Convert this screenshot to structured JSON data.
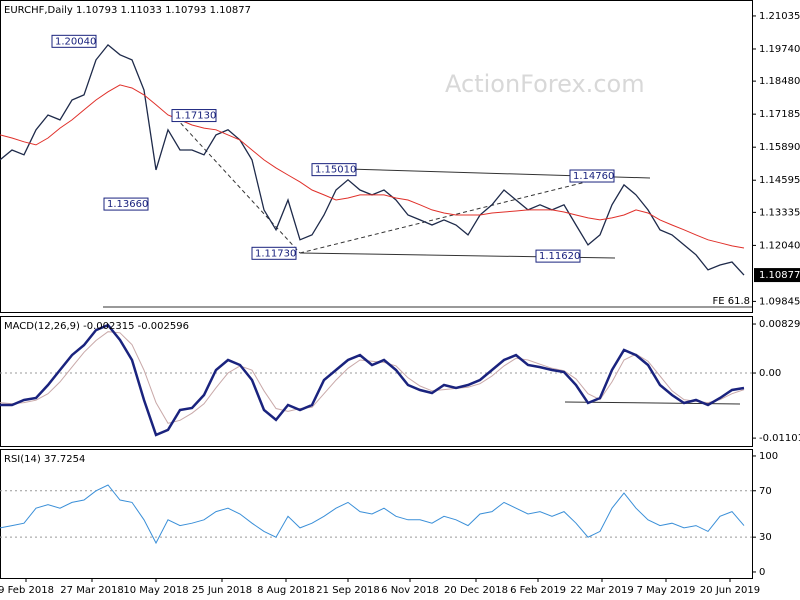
{
  "chart_data": [
    {
      "type": "line",
      "title": "EURCHF,Daily  1.10793 1.11033 1.10793 1.10877",
      "watermark": "ActionForex.com",
      "x": [
        0,
        6,
        12,
        18,
        24,
        30,
        36,
        42,
        48,
        54,
        60,
        66,
        72,
        78,
        84,
        90,
        96,
        102,
        108,
        114,
        120,
        126,
        132,
        138,
        144,
        150,
        156,
        162,
        168,
        174,
        180,
        186,
        192,
        198,
        204,
        210,
        216,
        222,
        228,
        234,
        240,
        246,
        252,
        258,
        264,
        270,
        276,
        282,
        288,
        294,
        300,
        306,
        312,
        318,
        324,
        330,
        336,
        342,
        348,
        354,
        360,
        366,
        372
      ],
      "series": [
        {
          "color": "#1e2a4a",
          "values": [
            1.1539,
            1.1578,
            1.1559,
            1.1657,
            1.1715,
            1.1696,
            1.1774,
            1.1794,
            1.1931,
            1.199,
            1.1951,
            1.1931,
            1.1813,
            1.15,
            1.1657,
            1.1578,
            1.1578,
            1.1559,
            1.1637,
            1.1657,
            1.1617,
            1.1539,
            1.1343,
            1.1265,
            1.1382,
            1.1226,
            1.1245,
            1.1323,
            1.1421,
            1.1461,
            1.1421,
            1.1402,
            1.1421,
            1.1382,
            1.1323,
            1.1304,
            1.1284,
            1.1304,
            1.1284,
            1.1245,
            1.1323,
            1.1363,
            1.1421,
            1.1382,
            1.1343,
            1.1363,
            1.1343,
            1.1363,
            1.1284,
            1.1206,
            1.1245,
            1.1363,
            1.1441,
            1.1402,
            1.1343,
            1.1265,
            1.1245,
            1.1206,
            1.1167,
            1.1108,
            1.1127,
            1.1139,
            1.10877
          ]
        },
        {
          "color": "#e0302a",
          "values": [
            1.1637,
            1.1625,
            1.161,
            1.1598,
            1.1625,
            1.1664,
            1.1696,
            1.1735,
            1.1774,
            1.1806,
            1.1833,
            1.1821,
            1.1794,
            1.1755,
            1.1715,
            1.1696,
            1.1676,
            1.1664,
            1.1657,
            1.1637,
            1.1617,
            1.1578,
            1.1539,
            1.1508,
            1.148,
            1.1453,
            1.1421,
            1.1402,
            1.1382,
            1.139,
            1.1402,
            1.1402,
            1.1402,
            1.139,
            1.1382,
            1.1363,
            1.1343,
            1.1331,
            1.1323,
            1.1323,
            1.1323,
            1.1331,
            1.1335,
            1.1339,
            1.1343,
            1.1343,
            1.1343,
            1.1335,
            1.1323,
            1.1312,
            1.1304,
            1.1312,
            1.1323,
            1.1343,
            1.1331,
            1.1304,
            1.1284,
            1.1265,
            1.1245,
            1.1226,
            1.1214,
            1.1202,
            1.1194
          ]
        }
      ],
      "last": 1.10877,
      "annotations": [
        {
          "x": 26,
          "value": 1.2004,
          "label": "1.20040"
        },
        {
          "x": 86,
          "value": 1.1713,
          "label": "1.17130"
        },
        {
          "x": 52,
          "value": 1.1366,
          "label": "1.13660"
        },
        {
          "x": 156,
          "value": 1.1501,
          "label": "1.15010"
        },
        {
          "x": 126,
          "value": 1.1173,
          "label": "1.11730"
        },
        {
          "x": 285,
          "value": 1.1476,
          "label": "1.14760"
        },
        {
          "x": 268,
          "value": 1.1162,
          "label": "1.11620"
        }
      ],
      "note": "FE 61.8",
      "xlim": [
        0,
        376
      ],
      "ylim": [
        1.0939,
        1.2166
      ],
      "yticks": [
        1.21035,
        {
          "value": 1.1974,
          "label": "1.19740"
        },
        {
          "value": 1.1848,
          "label": "1.18480"
        },
        1.17185,
        {
          "value": 1.1589,
          "label": "1.15890"
        },
        1.14595,
        1.13335,
        {
          "value": 1.1204,
          "label": "1.12040"
        },
        1.09845
      ]
    },
    {
      "type": "line",
      "title": "MACD(12,26,9) -0.002315 -0.002596",
      "x": [
        0,
        6,
        12,
        18,
        24,
        30,
        36,
        42,
        48,
        54,
        60,
        66,
        72,
        78,
        84,
        90,
        96,
        102,
        108,
        114,
        120,
        126,
        132,
        138,
        144,
        150,
        156,
        162,
        168,
        174,
        180,
        186,
        192,
        198,
        204,
        210,
        216,
        222,
        228,
        234,
        240,
        246,
        252,
        258,
        264,
        270,
        276,
        282,
        288,
        294,
        300,
        306,
        312,
        318,
        324,
        330,
        336,
        342,
        348,
        354,
        360,
        366,
        372
      ],
      "series": [
        {
          "color": "#c9a9a9",
          "values": [
            -0.005,
            -0.0052,
            -0.005,
            -0.0046,
            -0.0035,
            -0.0015,
            0.001,
            0.0035,
            0.0055,
            0.007,
            0.0068,
            0.0048,
            0.0005,
            -0.005,
            -0.0085,
            -0.008,
            -0.0068,
            -0.0052,
            -0.0025,
            0.0,
            0.0012,
            0.0005,
            -0.003,
            -0.006,
            -0.0065,
            -0.006,
            -0.0058,
            -0.0035,
            -0.0012,
            0.0008,
            0.0022,
            0.002,
            0.0018,
            0.0012,
            -0.0008,
            -0.0022,
            -0.003,
            -0.0028,
            -0.0026,
            -0.0024,
            -0.0018,
            -0.0005,
            0.0012,
            0.0025,
            0.0022,
            0.0015,
            0.0008,
            0.0004,
            -0.001,
            -0.0035,
            -0.0045,
            -0.0015,
            0.0022,
            0.0032,
            0.002,
            -0.0005,
            -0.003,
            -0.0045,
            -0.0048,
            -0.005,
            -0.0045,
            -0.0035,
            -0.0028
          ]
        },
        {
          "color": "#1a237e",
          "values": [
            -0.00541,
            -0.00541,
            -0.00456,
            -0.00423,
            -0.00203,
            0.00051,
            0.00304,
            0.00473,
            0.00727,
            0.00811,
            0.00558,
            0.0022,
            -0.00456,
            -0.01048,
            -0.00963,
            -0.00625,
            -0.00592,
            -0.00372,
            0.00051,
            0.0022,
            0.00135,
            -0.00118,
            -0.00625,
            -0.00794,
            -0.00541,
            -0.00625,
            -0.00541,
            -0.00118,
            0.00051,
            0.0022,
            0.00304,
            0.00135,
            0.0022,
            0.00051,
            -0.00203,
            -0.00287,
            -0.00338,
            -0.00203,
            -0.00254,
            -0.00203,
            -0.00118,
            0.00051,
            0.0022,
            0.00304,
            0.00135,
            0.00101,
            0.00051,
            0.00017,
            -0.00203,
            -0.00507,
            -0.00423,
            0.00051,
            0.00389,
            0.00304,
            0.00135,
            -0.00203,
            -0.00372,
            -0.00507,
            -0.00456,
            -0.00541,
            -0.00423,
            -0.00287,
            -0.00254
          ]
        }
      ],
      "levels": [
        0
      ],
      "xlim": [
        0,
        376
      ],
      "ylim": [
        -0.01235,
        0.00965
      ],
      "yticks": [
        0.008292,
        {
          "value": 0,
          "label": "0.00"
        },
        -0.011015
      ]
    },
    {
      "type": "line",
      "title": "RSI(14) 37.7254",
      "x": [
        0,
        6,
        12,
        18,
        24,
        30,
        36,
        42,
        48,
        54,
        60,
        66,
        72,
        78,
        84,
        90,
        96,
        102,
        108,
        114,
        120,
        126,
        132,
        138,
        144,
        150,
        156,
        162,
        168,
        174,
        180,
        186,
        192,
        198,
        204,
        210,
        216,
        222,
        228,
        234,
        240,
        246,
        252,
        258,
        264,
        270,
        276,
        282,
        288,
        294,
        300,
        306,
        312,
        318,
        324,
        330,
        336,
        342,
        348,
        354,
        360,
        366,
        372
      ],
      "series": [
        {
          "color": "#3a8fd8",
          "values": [
            38,
            40,
            42,
            55,
            58,
            55,
            60,
            62,
            70,
            75,
            62,
            60,
            45,
            25,
            45,
            40,
            42,
            45,
            52,
            55,
            50,
            42,
            35,
            30,
            48,
            38,
            42,
            48,
            55,
            60,
            52,
            50,
            55,
            48,
            45,
            45,
            42,
            48,
            45,
            40,
            50,
            52,
            60,
            55,
            50,
            52,
            48,
            52,
            42,
            30,
            35,
            55,
            68,
            55,
            45,
            40,
            42,
            38,
            40,
            35,
            48,
            52,
            40
          ]
        }
      ],
      "levels": [
        70,
        30
      ],
      "xlim": [
        0,
        376
      ],
      "ylim": [
        -5.2,
        106
      ],
      "yticks": [
        100,
        70,
        30,
        0
      ],
      "xticks": [
        {
          "value": 13,
          "label": "9 Feb 2018"
        },
        {
          "value": 46,
          "label": "27 Mar 2018"
        },
        {
          "value": 78,
          "label": "10 May 2018"
        },
        {
          "value": 111,
          "label": "25 Jun 2018"
        },
        {
          "value": 143,
          "label": "8 Aug 2018"
        },
        {
          "value": 174,
          "label": "21 Sep 2018"
        },
        {
          "value": 205,
          "label": "6 Nov 2018"
        },
        {
          "value": 238,
          "label": "20 Dec 2018"
        },
        {
          "value": 269,
          "label": "6 Feb 2019"
        },
        {
          "value": 301,
          "label": "22 Mar 2019"
        },
        {
          "value": 333,
          "label": "7 May 2019"
        },
        {
          "value": 365,
          "label": "20 Jun 2019"
        }
      ]
    }
  ]
}
